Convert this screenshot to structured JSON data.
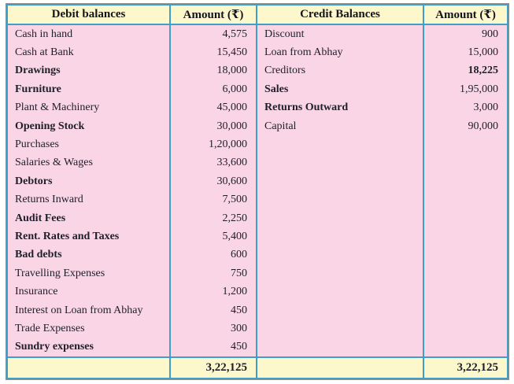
{
  "table": {
    "header": {
      "debit_label": "Debit balances",
      "debit_amount_label": "Amount (₹)",
      "credit_label": "Credit Balances",
      "credit_amount_label": "Amount (₹)"
    },
    "debit_rows": [
      {
        "label": "Cash in hand",
        "amount": "4,575"
      },
      {
        "label": "Cash at Bank",
        "amount": "15,450"
      },
      {
        "label": "Drawings",
        "amount": "18,000",
        "bold": true
      },
      {
        "label": "Furniture",
        "amount": "6,000",
        "bold": true
      },
      {
        "label": "Plant & Machinery",
        "amount": "45,000"
      },
      {
        "label": "Opening Stock",
        "amount": "30,000",
        "bold": true
      },
      {
        "label": "Purchases",
        "amount": "1,20,000"
      },
      {
        "label": "Salaries & Wages",
        "amount": "33,600"
      },
      {
        "label": "Debtors",
        "amount": "30,600",
        "bold": true
      },
      {
        "label": "Returns Inward",
        "amount": "7,500"
      },
      {
        "label": "Audit Fees",
        "amount": "2,250",
        "bold": true
      },
      {
        "label": "Rent. Rates and Taxes",
        "amount": "5,400",
        "bold": true
      },
      {
        "label": "Bad debts",
        "amount": "600",
        "bold": true
      },
      {
        "label": "Travelling Expenses",
        "amount": "750"
      },
      {
        "label": "Insurance",
        "amount": "1,200"
      },
      {
        "label": "Interest on Loan from Abhay",
        "amount": "450"
      },
      {
        "label": "Trade Expenses",
        "amount": "300"
      },
      {
        "label": "Sundry expenses",
        "amount": "450",
        "bold": true
      }
    ],
    "credit_rows": [
      {
        "label": "Discount",
        "amount": "900"
      },
      {
        "label": "Loan from Abhay",
        "amount": "15,000"
      },
      {
        "label": "Creditors",
        "amount": "18,225",
        "bold_amount": true
      },
      {
        "label": "Sales",
        "amount": "1,95,000",
        "bold": true
      },
      {
        "label": "Returns Outward",
        "amount": "3,000",
        "bold": true
      },
      {
        "label": "Capital",
        "amount": "90,000"
      }
    ],
    "totals": {
      "debit": "3,22,125",
      "credit": "3,22,125"
    }
  },
  "colors": {
    "header_bg": "#fcf8cb",
    "body_bg": "#f9d5e5",
    "total_bg": "#fcf8cb",
    "border_blue": "#3f9fc8",
    "outer_outline": "#8e8e86",
    "text": "#1f1f2b"
  }
}
